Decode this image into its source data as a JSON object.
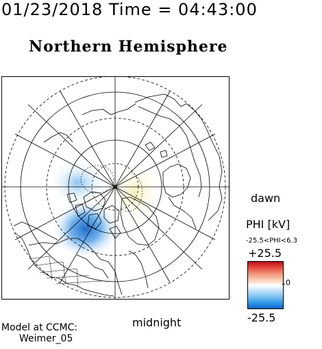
{
  "header": {
    "datetime": "01/23/2018 Time = 04:43:00"
  },
  "map": {
    "title": "Northern Hemisphere",
    "projection": "polar-stereographic",
    "pole": "north-magnetic",
    "features": [
      "coastlines",
      "latitude-circles",
      "longitude-lines",
      "potential-contours"
    ],
    "orientation": {
      "bottom": "midnight",
      "right": "dawn"
    },
    "label_dawn": "dawn",
    "label_midnight": "midnight"
  },
  "colorbar": {
    "label": "PHI [kV]",
    "range_text": "-25.5<PHI<6.3",
    "max_label": "+25.5",
    "min_label": "-25.5",
    "zero_label": "0",
    "colors": {
      "positive": "#b5121b",
      "zero": "#ffffff",
      "negative": "#1165c9"
    }
  },
  "credits": {
    "line1": "Model at CCMC:",
    "line2": "Weimer_05"
  }
}
